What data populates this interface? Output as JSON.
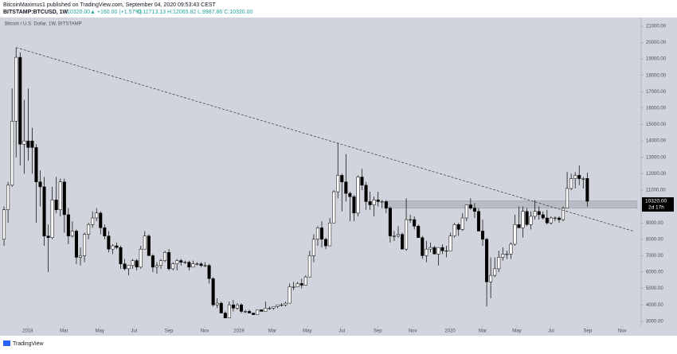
{
  "header": {
    "line1": "BitcoinMaximus1 published on TradingView.com, September 04, 2020 09:53:43 CEST",
    "symbol": "BITSTAMP:BTCUSD, 1W",
    "last": "10320.00",
    "change": "▲ +160.00 (+1.57%)",
    "ohlc": "O:11713.13 H:12065.82 L:9987.86 C:10320.00"
  },
  "footer": {
    "brand": "TradingView"
  },
  "chart_data": {
    "type": "candlestick",
    "title": "Bitcoin / U.S. Dollar, 1W, BITSTAMP",
    "background": "#d1d4dc",
    "up_color": "#ffffff",
    "down_color": "#000000",
    "price_label": "10320.00",
    "countdown": "2d 17h",
    "xlim": [
      -1,
      158.4
    ],
    "ylim": [
      2700,
      21530
    ],
    "xticks": [
      {
        "value": 5.9,
        "label": "2018"
      },
      {
        "value": 14.9,
        "label": "Mar"
      },
      {
        "value": 23.8,
        "label": "May"
      },
      {
        "value": 32.3,
        "label": "Jul"
      },
      {
        "value": 41,
        "label": "Sep"
      },
      {
        "value": 49.9,
        "label": "Nov"
      },
      {
        "value": 58.4,
        "label": "2019"
      },
      {
        "value": 66.7,
        "label": "Mar"
      },
      {
        "value": 75.4,
        "label": "May"
      },
      {
        "value": 84,
        "label": "Jul"
      },
      {
        "value": 92.9,
        "label": "Sep"
      },
      {
        "value": 101.6,
        "label": "Nov"
      },
      {
        "value": 110.9,
        "label": "2020"
      },
      {
        "value": 119,
        "label": "Mar"
      },
      {
        "value": 127.5,
        "label": "May"
      },
      {
        "value": 136,
        "label": "Jul"
      },
      {
        "value": 145.1,
        "label": "Sep"
      },
      {
        "value": 153.7,
        "label": "Nov"
      }
    ],
    "yticks": [
      {
        "value": 3000,
        "label": "3000.00"
      },
      {
        "value": 4000,
        "label": "4000.00"
      },
      {
        "value": 5000,
        "label": "5000.00"
      },
      {
        "value": 6000,
        "label": "6000.00"
      },
      {
        "value": 7000,
        "label": "7000.00"
      },
      {
        "value": 8000,
        "label": "8000.00"
      },
      {
        "value": 9000,
        "label": "9000.00"
      },
      {
        "value": 10000,
        "label": "10000.00"
      },
      {
        "value": 11000,
        "label": "11000.00"
      },
      {
        "value": 12000,
        "label": "12000.00"
      },
      {
        "value": 13000,
        "label": "13000.00"
      },
      {
        "value": 14000,
        "label": "14000.00"
      },
      {
        "value": 15000,
        "label": "15000.00"
      },
      {
        "value": 16000,
        "label": "16000.00"
      },
      {
        "value": 17000,
        "label": "17000.00"
      },
      {
        "value": 18000,
        "label": "18000.00"
      },
      {
        "value": 19000,
        "label": "19000.00"
      },
      {
        "value": 20000,
        "label": "20000.00"
      },
      {
        "value": 21000,
        "label": "21000.00"
      }
    ],
    "trendline": {
      "x": [
        3,
        156.4
      ],
      "y": [
        19700,
        8500
      ]
    },
    "zone": {
      "x": [
        95.4,
        157.4
      ],
      "y": [
        9900,
        10350
      ]
    },
    "candles": [
      [
        8000,
        10000,
        7600,
        9800
      ],
      [
        9800,
        11500,
        9000,
        11300
      ],
      [
        11300,
        17200,
        11200,
        15200
      ],
      [
        15200,
        19700,
        13000,
        19100
      ],
      [
        19100,
        19400,
        12500,
        13800
      ],
      [
        13800,
        16500,
        12000,
        14000
      ],
      [
        14000,
        17200,
        12800,
        13600
      ],
      [
        14000,
        14800,
        12000,
        13600
      ],
      [
        13600,
        13800,
        9000,
        11500
      ],
      [
        11500,
        12200,
        10000,
        11200
      ],
      [
        11200,
        11800,
        7600,
        8200
      ],
      [
        8200,
        8900,
        6000,
        8100
      ],
      [
        8100,
        11200,
        8000,
        10400
      ],
      [
        10400,
        11800,
        9600,
        9800
      ],
      [
        9800,
        11700,
        9400,
        11500
      ],
      [
        11500,
        11700,
        8400,
        9500
      ],
      [
        9500,
        9900,
        7700,
        8200
      ],
      [
        8200,
        9100,
        8100,
        8500
      ],
      [
        8500,
        8600,
        6500,
        6900
      ],
      [
        6900,
        7500,
        6400,
        7000
      ],
      [
        7000,
        8400,
        6600,
        8300
      ],
      [
        8300,
        9000,
        8000,
        8900
      ],
      [
        8900,
        9700,
        8700,
        9300
      ],
      [
        9300,
        9900,
        9100,
        9600
      ],
      [
        9600,
        9700,
        8300,
        8700
      ],
      [
        8700,
        8900,
        8000,
        8200
      ],
      [
        8200,
        8500,
        7200,
        7400
      ],
      [
        7400,
        7700,
        7100,
        7600
      ],
      [
        7600,
        7800,
        7400,
        7500
      ],
      [
        7500,
        7600,
        6200,
        6500
      ],
      [
        6500,
        6800,
        6100,
        6200
      ],
      [
        6200,
        6400,
        5800,
        6400
      ],
      [
        6400,
        6800,
        6200,
        6700
      ],
      [
        6700,
        6800,
        6100,
        6300
      ],
      [
        6300,
        7600,
        6200,
        7400
      ],
      [
        7400,
        8500,
        7400,
        8200
      ],
      [
        8200,
        8300,
        7000,
        7000
      ],
      [
        7000,
        7100,
        6000,
        6300
      ],
      [
        6300,
        6600,
        5900,
        6400
      ],
      [
        6400,
        6800,
        6200,
        6700
      ],
      [
        6700,
        7300,
        6600,
        7200
      ],
      [
        7200,
        7400,
        6100,
        6200
      ],
      [
        6200,
        6600,
        6100,
        6500
      ],
      [
        6500,
        6800,
        6100,
        6700
      ],
      [
        6700,
        6800,
        6400,
        6600
      ],
      [
        6600,
        6700,
        6500,
        6600
      ],
      [
        6600,
        6700,
        6100,
        6300
      ],
      [
        6300,
        6700,
        6300,
        6500
      ],
      [
        6500,
        6600,
        6400,
        6500
      ],
      [
        6500,
        6600,
        6300,
        6400
      ],
      [
        6400,
        6600,
        6300,
        6400
      ],
      [
        6400,
        6500,
        5300,
        5600
      ],
      [
        5600,
        5700,
        3900,
        4000
      ],
      [
        4000,
        4400,
        3800,
        4100
      ],
      [
        4100,
        4200,
        3500,
        3500
      ],
      [
        3500,
        3600,
        3200,
        3200
      ],
      [
        3200,
        4200,
        3200,
        4000
      ],
      [
        4000,
        4300,
        3600,
        3800
      ],
      [
        3800,
        4100,
        3700,
        4000
      ],
      [
        4000,
        4100,
        3500,
        3600
      ],
      [
        3600,
        3700,
        3500,
        3600
      ],
      [
        3600,
        3700,
        3500,
        3500
      ],
      [
        3500,
        3500,
        3400,
        3400
      ],
      [
        3400,
        3700,
        3400,
        3700
      ],
      [
        3700,
        3700,
        3600,
        3600
      ],
      [
        3600,
        4200,
        3600,
        3800
      ],
      [
        3800,
        3900,
        3700,
        3800
      ],
      [
        3800,
        3900,
        3700,
        3900
      ],
      [
        3900,
        4000,
        3800,
        4000
      ],
      [
        4000,
        4100,
        3900,
        4000
      ],
      [
        4000,
        4200,
        3900,
        4100
      ],
      [
        4100,
        5300,
        4100,
        5100
      ],
      [
        5100,
        5400,
        4900,
        5100
      ],
      [
        5100,
        5400,
        5100,
        5300
      ],
      [
        5300,
        5600,
        5000,
        5200
      ],
      [
        5200,
        5800,
        5200,
        5700
      ],
      [
        5700,
        7300,
        5700,
        7000
      ],
      [
        7000,
        8300,
        6600,
        8000
      ],
      [
        8000,
        8800,
        7600,
        8700
      ],
      [
        8700,
        9100,
        7500,
        8000
      ],
      [
        8000,
        8100,
        7400,
        7600
      ],
      [
        7600,
        9300,
        7600,
        9000
      ],
      [
        9000,
        11000,
        9000,
        10900
      ],
      [
        10900,
        13900,
        10500,
        11900
      ],
      [
        11900,
        12000,
        9700,
        11500
      ],
      [
        11500,
        13200,
        10300,
        10800
      ],
      [
        10800,
        10900,
        9100,
        10600
      ],
      [
        10600,
        10700,
        9100,
        9600
      ],
      [
        9600,
        11900,
        9400,
        11800
      ],
      [
        11800,
        12300,
        11000,
        11300
      ],
      [
        11300,
        11500,
        9800,
        10300
      ],
      [
        10300,
        10900,
        9800,
        10100
      ],
      [
        10100,
        10600,
        9400,
        10400
      ],
      [
        10400,
        10900,
        10000,
        10300
      ],
      [
        10300,
        10400,
        9900,
        10300
      ],
      [
        10300,
        10400,
        9600,
        9900
      ],
      [
        9900,
        10000,
        7800,
        8200
      ],
      [
        8200,
        8500,
        7900,
        8200
      ],
      [
        8200,
        8800,
        8100,
        8300
      ],
      [
        8300,
        8400,
        7400,
        7400
      ],
      [
        7400,
        10500,
        7300,
        9200
      ],
      [
        9200,
        9500,
        9000,
        9200
      ],
      [
        9200,
        9400,
        8600,
        8800
      ],
      [
        8800,
        8900,
        8100,
        8100
      ],
      [
        8100,
        8200,
        6800,
        7000
      ],
      [
        7000,
        7900,
        6600,
        7400
      ],
      [
        7400,
        7800,
        7200,
        7500
      ],
      [
        7500,
        7600,
        7100,
        7100
      ],
      [
        7100,
        7500,
        6400,
        7500
      ],
      [
        7500,
        7700,
        7100,
        7300
      ],
      [
        7300,
        7600,
        6900,
        7300
      ],
      [
        7300,
        8400,
        7300,
        8200
      ],
      [
        8200,
        9000,
        8100,
        8900
      ],
      [
        8900,
        9000,
        8200,
        8600
      ],
      [
        8600,
        9600,
        8500,
        9300
      ],
      [
        9300,
        10100,
        9100,
        10100
      ],
      [
        10100,
        10500,
        9800,
        9900
      ],
      [
        9900,
        10200,
        9300,
        9700
      ],
      [
        9700,
        9900,
        8500,
        8500
      ],
      [
        8500,
        9200,
        7600,
        8000
      ],
      [
        8000,
        8100,
        3900,
        5400
      ],
      [
        5400,
        6900,
        4400,
        5800
      ],
      [
        5800,
        6900,
        5700,
        6200
      ],
      [
        6200,
        7300,
        6000,
        6900
      ],
      [
        6900,
        7500,
        6700,
        7100
      ],
      [
        7100,
        7300,
        6800,
        7100
      ],
      [
        7100,
        7800,
        6800,
        7700
      ],
      [
        7700,
        9500,
        7600,
        8900
      ],
      [
        8900,
        10000,
        8700,
        8700
      ],
      [
        8700,
        10000,
        8100,
        9700
      ],
      [
        9700,
        9900,
        8800,
        8900
      ],
      [
        8900,
        9700,
        8600,
        9400
      ],
      [
        9400,
        10400,
        9200,
        9700
      ],
      [
        9700,
        10000,
        9200,
        9500
      ],
      [
        9500,
        9700,
        9200,
        9300
      ],
      [
        9300,
        9800,
        8900,
        9000
      ],
      [
        9000,
        9400,
        8900,
        9300
      ],
      [
        9300,
        9400,
        9100,
        9300
      ],
      [
        9300,
        9400,
        9000,
        9200
      ],
      [
        9200,
        10000,
        9100,
        9900
      ],
      [
        9900,
        12100,
        9900,
        11100
      ],
      [
        11100,
        12000,
        11000,
        11700
      ],
      [
        11700,
        12100,
        11100,
        11900
      ],
      [
        11900,
        12500,
        11300,
        11700
      ],
      [
        11700,
        11800,
        11100,
        11700
      ],
      [
        11713.13,
        12065.82,
        9987.86,
        10320.0
      ]
    ]
  }
}
